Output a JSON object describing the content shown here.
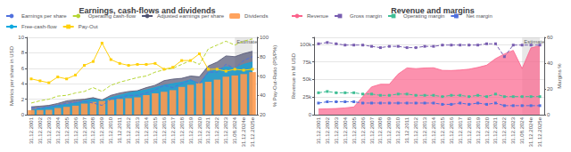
{
  "chart_data": [
    {
      "type": "bar",
      "title": "Earnings, cash-flows and dividends",
      "y_label": "Metrics per share in USD",
      "y2_label": "% Pay-Out-Ratio (PS/P%)",
      "categories": [
        "31.12.2001",
        "31.12.2002",
        "31.12.2003",
        "31.12.2004",
        "31.12.2005",
        "31.12.2006",
        "31.12.2007",
        "31.12.2008",
        "31.12.2009",
        "31.12.2010",
        "31.12.2011",
        "31.12.2012",
        "31.12.2013",
        "31.12.2014",
        "31.12.2015",
        "31.12.2016",
        "31.12.2017",
        "31.12.2018",
        "31.12.2019",
        "31.12.2020",
        "31.12.2021",
        "31.12.2022",
        "31.12.2023",
        "31.08.2024",
        "31.12.2024e",
        "31.12.2025e"
      ],
      "series": [
        {
          "name": "Earnings per share",
          "type": "line",
          "line_style": "dashed",
          "values": [
            0.9,
            0.85,
            1.0,
            1.2,
            1.5,
            1.6,
            1.7,
            1.5,
            1.2,
            2.0,
            2.2,
            2.5,
            2.5,
            2.8,
            3.2,
            3.8,
            3.5,
            4.0,
            4.5,
            4.0,
            5.5,
            5.5,
            6.5,
            6.0,
            7.0,
            7.5
          ]
        },
        {
          "name": "Operating cash-flow",
          "type": "line",
          "line_style": "dashed",
          "values": [
            1.5,
            1.8,
            2.0,
            2.4,
            2.5,
            2.8,
            3.0,
            3.5,
            3.0,
            3.8,
            4.2,
            4.5,
            4.8,
            5.0,
            5.5,
            5.8,
            6.0,
            6.5,
            7.0,
            6.5,
            8.5,
            9.0,
            9.5,
            9.0,
            9.5,
            9.8
          ]
        },
        {
          "name": "Adjusted earnings per share",
          "type": "area",
          "values": [
            1.02,
            1.1,
            1.2,
            1.45,
            1.78,
            1.9,
            2.0,
            2.2,
            1.9,
            2.5,
            2.8,
            3.0,
            3.1,
            3.5,
            3.8,
            4.4,
            4.6,
            4.7,
            5.0,
            4.9,
            6.3,
            6.8,
            7.6,
            7.5,
            7.9,
            8.2
          ]
        },
        {
          "name": "Dividends",
          "type": "bar",
          "values": [
            0.58,
            0.6,
            0.63,
            0.85,
            1.01,
            1.16,
            1.43,
            1.65,
            1.78,
            1.92,
            2.03,
            2.13,
            2.24,
            2.53,
            2.76,
            2.96,
            3.17,
            3.59,
            3.86,
            4.09,
            4.25,
            4.53,
            4.92,
            5.07,
            5.25,
            5.5
          ]
        },
        {
          "name": "Free-cash-flow",
          "type": "area",
          "values": [
            0.5,
            0.8,
            1.0,
            1.2,
            1.3,
            1.5,
            1.8,
            2.0,
            1.8,
            2.2,
            2.5,
            2.8,
            3.0,
            3.2,
            3.5,
            3.8,
            4.0,
            4.2,
            4.5,
            4.0,
            5.5,
            5.8,
            6.2,
            6.0,
            6.5,
            6.8
          ]
        },
        {
          "name": "Pay-Out",
          "type": "line",
          "marker": "square",
          "axis": "y2",
          "values": [
            57,
            55,
            53,
            59,
            57,
            61,
            71,
            75,
            94,
            77,
            73,
            71,
            72,
            72,
            73,
            67,
            69,
            76,
            76,
            83,
            67,
            67,
            65,
            67,
            66,
            67
          ]
        }
      ],
      "ylim": [
        0,
        10
      ],
      "yticks": [
        0,
        2,
        4,
        6,
        8,
        10
      ],
      "y2lim": [
        20,
        100
      ],
      "y2ticks": [
        20,
        40,
        60,
        80,
        100
      ],
      "grid": true,
      "legend": "top",
      "annotations": [
        {
          "text": "Estimate",
          "x": "31.08.2024"
        }
      ]
    },
    {
      "type": "line",
      "title": "Revenue and margins",
      "y_label": "Revenue in M USD",
      "y2_label": "Margins %",
      "categories": [
        "31.12.2001",
        "31.12.2002",
        "31.12.2003",
        "31.12.2004",
        "31.12.2005",
        "31.12.2006",
        "31.12.2007",
        "31.12.2008",
        "31.12.2009",
        "31.12.2010",
        "31.12.2011",
        "31.12.2012",
        "31.12.2013",
        "31.12.2014",
        "31.12.2015",
        "31.12.2016",
        "31.12.2017",
        "31.12.2018",
        "31.12.2019",
        "31.12.2020",
        "31.12.2021",
        "31.12.2022",
        "31.12.2023",
        "31.08.2024",
        "31.12.2024e",
        "31.12.2025e"
      ],
      "series": [
        {
          "name": "Revenue",
          "type": "area",
          "values": [
            8000,
            8300,
            8700,
            9600,
            11000,
            25500,
            39500,
            43300,
            43200,
            57800,
            66500,
            65500,
            66400,
            66700,
            63000,
            62800,
            63500,
            64700,
            67200,
            70400,
            79700,
            86400,
            91500,
            65600,
            95000,
            98000
          ]
        },
        {
          "name": "Gross margin",
          "type": "line",
          "line_style": "dashed",
          "marker": "square",
          "axis": "y2",
          "values": [
            55,
            56,
            55,
            54,
            54,
            54,
            53,
            52,
            53,
            53,
            52,
            52,
            53,
            53,
            54,
            54,
            54,
            54,
            54,
            55,
            55,
            45,
            54,
            54,
            54,
            54
          ]
        },
        {
          "name": "Operating margin",
          "type": "line",
          "line_style": "dashed",
          "marker": "square",
          "axis": "y2",
          "values": [
            17,
            18,
            17,
            17,
            17,
            16,
            16,
            15,
            15,
            16,
            16,
            15,
            15,
            15,
            14,
            15,
            15,
            14,
            15,
            14,
            16,
            14,
            14,
            14,
            14,
            14
          ]
        },
        {
          "name": "Net margin",
          "type": "line",
          "line_style": "dashed",
          "marker": "square",
          "axis": "y2",
          "values": [
            9,
            10,
            10,
            10,
            10,
            9,
            9,
            9,
            9,
            9,
            9,
            9,
            9,
            9,
            8,
            8,
            9,
            8,
            9,
            8,
            9,
            7,
            7,
            7,
            7,
            7
          ]
        }
      ],
      "ylim": [
        0,
        110000
      ],
      "yticks": [
        0,
        {
          "value": 25000,
          "label": "25k"
        },
        {
          "value": 50000,
          "label": "50k"
        },
        {
          "value": 75000,
          "label": "75k"
        },
        {
          "value": 100000,
          "label": "100k"
        }
      ],
      "y2lim": [
        0,
        60
      ],
      "y2ticks": [
        0,
        20,
        40,
        60
      ],
      "grid": true,
      "legend": "top",
      "annotations": [
        {
          "text": "Estimate",
          "x": "31.08.2024"
        }
      ]
    }
  ]
}
